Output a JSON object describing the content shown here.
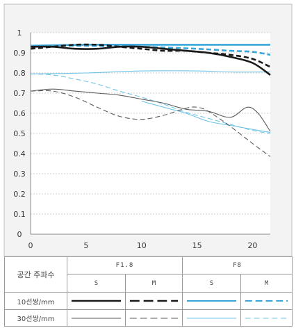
{
  "chart_data": {
    "type": "line",
    "title": "",
    "xlabel": "",
    "ylabel": "",
    "xlim": [
      0,
      21.6
    ],
    "ylim": [
      0,
      1
    ],
    "x_ticks": [
      "0",
      "5",
      "10",
      "15",
      "20"
    ],
    "y_ticks": [
      "0",
      "0.1",
      "0.2",
      "0.3",
      "0.4",
      "0.5",
      "0.6",
      "0.7",
      "0.8",
      "0.9",
      "1"
    ],
    "grid": "horizontal dotted",
    "series": [
      {
        "key": "f18_10_s",
        "color": "#1a1a1a",
        "dash": "solid",
        "width": "thick",
        "points": [
          [
            0,
            0.93
          ],
          [
            2,
            0.93
          ],
          [
            4,
            0.92
          ],
          [
            6,
            0.92
          ],
          [
            8,
            0.93
          ],
          [
            10,
            0.93
          ],
          [
            12,
            0.92
          ],
          [
            14,
            0.91
          ],
          [
            16,
            0.9
          ],
          [
            18,
            0.88
          ],
          [
            20,
            0.85
          ],
          [
            21.6,
            0.79
          ]
        ]
      },
      {
        "key": "f18_10_m",
        "color": "#1a1a1a",
        "dash": "dashed",
        "width": "thick",
        "points": [
          [
            0,
            0.92
          ],
          [
            2,
            0.93
          ],
          [
            4,
            0.94
          ],
          [
            6,
            0.94
          ],
          [
            8,
            0.93
          ],
          [
            10,
            0.92
          ],
          [
            12,
            0.91
          ],
          [
            14,
            0.91
          ],
          [
            16,
            0.9
          ],
          [
            18,
            0.89
          ],
          [
            20,
            0.87
          ],
          [
            21.6,
            0.83
          ]
        ]
      },
      {
        "key": "f18_30_s",
        "color": "#5a5a5a",
        "dash": "solid",
        "width": "thin",
        "points": [
          [
            0,
            0.71
          ],
          [
            2,
            0.72
          ],
          [
            4,
            0.71
          ],
          [
            6,
            0.7
          ],
          [
            8,
            0.69
          ],
          [
            10,
            0.67
          ],
          [
            12,
            0.65
          ],
          [
            14,
            0.62
          ],
          [
            16,
            0.61
          ],
          [
            18,
            0.58
          ],
          [
            19.5,
            0.63
          ],
          [
            20.5,
            0.6
          ],
          [
            21.6,
            0.51
          ]
        ]
      },
      {
        "key": "f18_30_m",
        "color": "#5a5a5a",
        "dash": "dashed",
        "width": "thin",
        "points": [
          [
            0,
            0.71
          ],
          [
            2,
            0.71
          ],
          [
            4,
            0.68
          ],
          [
            6,
            0.63
          ],
          [
            8,
            0.585
          ],
          [
            10,
            0.57
          ],
          [
            12,
            0.59
          ],
          [
            14,
            0.625
          ],
          [
            15,
            0.63
          ],
          [
            16,
            0.61
          ],
          [
            18,
            0.535
          ],
          [
            20,
            0.45
          ],
          [
            21.6,
            0.385
          ]
        ]
      },
      {
        "key": "f8_10_s",
        "color": "#3aa5d8",
        "dash": "solid",
        "width": "thick",
        "points": [
          [
            0,
            0.935
          ],
          [
            5,
            0.94
          ],
          [
            10,
            0.94
          ],
          [
            15,
            0.94
          ],
          [
            20,
            0.94
          ],
          [
            21.6,
            0.94
          ]
        ]
      },
      {
        "key": "f8_10_m",
        "color": "#3aa5d8",
        "dash": "dashed",
        "width": "thick",
        "points": [
          [
            0,
            0.935
          ],
          [
            5,
            0.935
          ],
          [
            10,
            0.93
          ],
          [
            15,
            0.92
          ],
          [
            18,
            0.91
          ],
          [
            20,
            0.905
          ],
          [
            21.6,
            0.89
          ]
        ]
      },
      {
        "key": "f8_30_s",
        "color": "#6ec3e6",
        "dash": "solid",
        "width": "thin",
        "points": [
          [
            0,
            0.795
          ],
          [
            5,
            0.8
          ],
          [
            10,
            0.81
          ],
          [
            15,
            0.81
          ],
          [
            18,
            0.805
          ],
          [
            21.6,
            0.805
          ]
        ]
      },
      {
        "key": "f8_30_m",
        "color": "#6ec3e6",
        "dash": "dashed",
        "width": "thin",
        "points": [
          [
            0,
            0.795
          ],
          [
            2,
            0.79
          ],
          [
            4,
            0.77
          ],
          [
            6,
            0.745
          ],
          [
            8,
            0.71
          ],
          [
            10,
            0.68
          ],
          [
            12,
            0.645
          ],
          [
            14,
            0.605
          ],
          [
            16,
            0.575
          ],
          [
            18,
            0.545
          ],
          [
            20,
            0.515
          ],
          [
            21.6,
            0.5
          ]
        ]
      },
      {
        "key": "f8_30_s_low",
        "color": "#6ec3e6",
        "dash": "solid",
        "width": "thin",
        "points": [
          [
            10,
            0.66
          ],
          [
            12,
            0.63
          ],
          [
            14,
            0.6
          ],
          [
            16,
            0.56
          ],
          [
            18,
            0.54
          ],
          [
            20,
            0.52
          ],
          [
            21.6,
            0.505
          ]
        ]
      }
    ]
  },
  "legend": {
    "header": "공간 주파수",
    "apertures": [
      "F1.8",
      "F8"
    ],
    "s_label": "S",
    "m_label": "M",
    "row_10": "10선쌍/mm",
    "row_30": "30선쌍/mm"
  },
  "colors": {
    "black_line": "#1a1a1a",
    "gray_line": "#5a5a5a",
    "blue_line": "#3aa5d8",
    "light_blue_line": "#6ec3e6",
    "grid": "#cfcfcf",
    "frame": "#9a9a9a"
  }
}
